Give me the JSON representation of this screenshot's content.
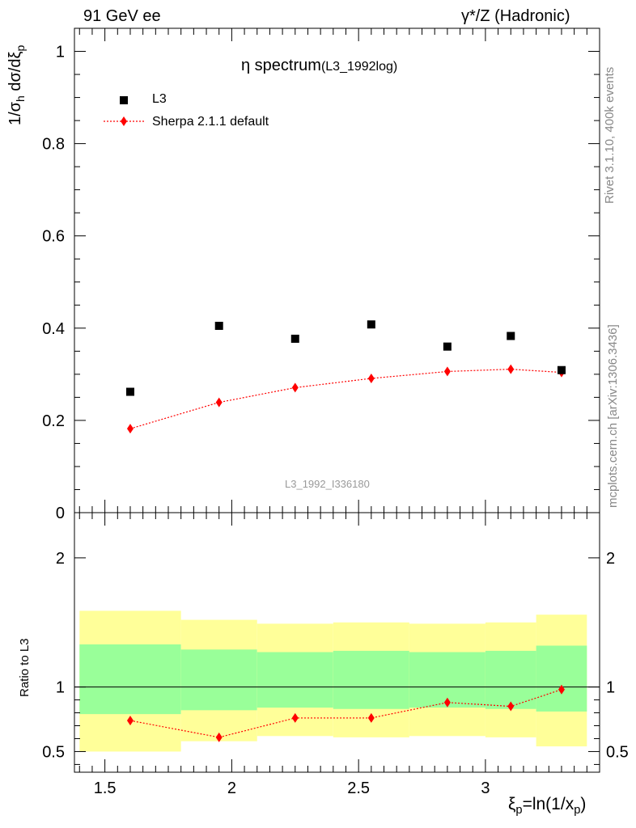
{
  "header": {
    "left_label": "91 GeV ee",
    "right_label": "γ*/Z (Hadronic)"
  },
  "side": {
    "rivet_text": "Rivet 3.1.10,  400k events",
    "mcplots_text": "mcplots.cern.ch [arXiv:1306.3436]"
  },
  "colors": {
    "data_marker": "#000000",
    "mc_line": "#ff0000",
    "band_outer": "#ffff99",
    "band_inner": "#99ff99"
  },
  "chart_data": [
    {
      "type": "scatter",
      "title": "η spectrum",
      "title_suffix": "(L3_1992log)",
      "ylabel": "1/σh dσ/dξp",
      "xlabel": "ξp=ln(1/xp)",
      "xlim": [
        1.38,
        3.45
      ],
      "ylim": [
        0,
        1.05
      ],
      "y_ticks": [
        0,
        0.2,
        0.4,
        0.6,
        0.8,
        1
      ],
      "y_tick_labels": [
        "0",
        "0.2",
        "0.4",
        "0.6",
        "0.8",
        "1"
      ],
      "watermark": "L3_1992_I336180",
      "legend_placement": "top-left",
      "series": [
        {
          "name": "L3",
          "marker": "square",
          "x": [
            1.6,
            1.95,
            2.25,
            2.55,
            2.85,
            3.1,
            3.3
          ],
          "y": [
            0.262,
            0.405,
            0.377,
            0.408,
            0.36,
            0.383,
            0.309
          ]
        },
        {
          "name": "Sherpa 2.1.1 default",
          "marker": "diamond",
          "line": "dotted",
          "x": [
            1.6,
            1.95,
            2.25,
            2.55,
            2.85,
            3.1,
            3.3
          ],
          "y": [
            0.182,
            0.239,
            0.271,
            0.291,
            0.306,
            0.311,
            0.304
          ]
        }
      ]
    },
    {
      "type": "line",
      "ylabel": "Ratio to L3",
      "xlabel": "ξp=ln(1/xp)",
      "xlim": [
        1.38,
        3.45
      ],
      "ylim": [
        0.34,
        2.35
      ],
      "y_ticks": [
        0.5,
        1,
        2
      ],
      "y_tick_labels": [
        "0.5",
        "1",
        "2"
      ],
      "x_ticks": [
        1.5,
        2,
        2.5,
        3
      ],
      "x_tick_labels": [
        "1.5",
        "2",
        "2.5",
        "3"
      ],
      "bands": {
        "bin_edges": [
          1.4,
          1.8,
          2.1,
          2.4,
          2.7,
          3.0,
          3.2,
          3.4
        ],
        "outer_low": [
          0.5,
          0.58,
          0.62,
          0.61,
          0.62,
          0.61,
          0.54
        ],
        "outer_high": [
          1.59,
          1.52,
          1.49,
          1.5,
          1.49,
          1.5,
          1.56
        ],
        "inner_low": [
          0.79,
          0.82,
          0.84,
          0.83,
          0.84,
          0.83,
          0.81
        ],
        "inner_high": [
          1.33,
          1.29,
          1.27,
          1.28,
          1.27,
          1.28,
          1.32
        ]
      },
      "reference_line": 1,
      "series": [
        {
          "name": "Sherpa 2.1.1 default",
          "marker": "diamond",
          "line": "dotted",
          "x": [
            1.6,
            1.95,
            2.25,
            2.55,
            2.85,
            3.1,
            3.3
          ],
          "y": [
            0.74,
            0.61,
            0.76,
            0.76,
            0.88,
            0.85,
            0.98
          ]
        }
      ]
    }
  ]
}
